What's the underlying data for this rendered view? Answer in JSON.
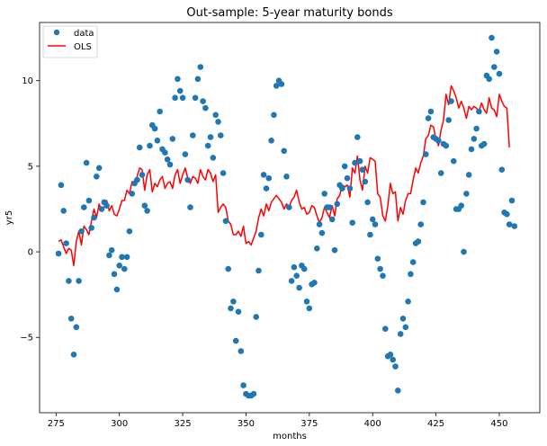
{
  "chart_data": {
    "type": "scatter",
    "title": "Out-sample: 5-year maturity bonds",
    "xlabel": "months",
    "ylabel": "yr5",
    "xlim": [
      268.5,
      466
    ],
    "ylim": [
      -9.4,
      13.4
    ],
    "x_ticks": [
      275,
      300,
      325,
      350,
      375,
      400,
      425,
      450
    ],
    "y_ticks": [
      -5,
      0,
      5,
      10
    ],
    "legend_position": "top-left",
    "grid": false,
    "legend": {
      "data_label": "data",
      "line_label": "OLS"
    },
    "colors": {
      "data": "#1f77b4",
      "line": "#ff0000"
    },
    "scatter": {
      "name": "data",
      "points": [
        [
          276,
          -0.1
        ],
        [
          277,
          3.9
        ],
        [
          278,
          2.4
        ],
        [
          279,
          0.5
        ],
        [
          280,
          -1.7
        ],
        [
          281,
          -3.9
        ],
        [
          282,
          -6.0
        ],
        [
          283,
          -4.4
        ],
        [
          284,
          -1.7
        ],
        [
          285,
          1.2
        ],
        [
          286,
          2.6
        ],
        [
          287,
          5.2
        ],
        [
          288,
          3.0
        ],
        [
          289,
          1.4
        ],
        [
          290,
          2.0
        ],
        [
          291,
          4.4
        ],
        [
          292,
          4.9
        ],
        [
          293,
          2.5
        ],
        [
          294,
          2.9
        ],
        [
          295,
          2.7
        ],
        [
          296,
          -0.2
        ],
        [
          297,
          0.1
        ],
        [
          298,
          -1.3
        ],
        [
          299,
          -2.2
        ],
        [
          300,
          -0.8
        ],
        [
          301,
          -0.3
        ],
        [
          302,
          -1.0
        ],
        [
          303,
          -0.3
        ],
        [
          304,
          1.2
        ],
        [
          305,
          3.4
        ],
        [
          306,
          4.0
        ],
        [
          307,
          4.2
        ],
        [
          308,
          6.1
        ],
        [
          309,
          4.5
        ],
        [
          310,
          2.7
        ],
        [
          311,
          2.4
        ],
        [
          312,
          6.2
        ],
        [
          313,
          7.4
        ],
        [
          314,
          7.2
        ],
        [
          315,
          6.5
        ],
        [
          316,
          8.2
        ],
        [
          317,
          6.0
        ],
        [
          318,
          5.8
        ],
        [
          319,
          5.4
        ],
        [
          320,
          5.1
        ],
        [
          321,
          6.6
        ],
        [
          322,
          9.0
        ],
        [
          323,
          10.1
        ],
        [
          324,
          9.4
        ],
        [
          325,
          9.0
        ],
        [
          326,
          5.7
        ],
        [
          327,
          4.2
        ],
        [
          328,
          2.6
        ],
        [
          329,
          6.8
        ],
        [
          330,
          9.0
        ],
        [
          331,
          10.1
        ],
        [
          332,
          10.8
        ],
        [
          333,
          8.8
        ],
        [
          334,
          8.4
        ],
        [
          335,
          6.2
        ],
        [
          336,
          6.7
        ],
        [
          337,
          5.5
        ],
        [
          338,
          8.0
        ],
        [
          339,
          7.6
        ],
        [
          340,
          6.8
        ],
        [
          341,
          4.6
        ],
        [
          342,
          1.8
        ],
        [
          343,
          -1.0
        ],
        [
          344,
          -3.3
        ],
        [
          345,
          -2.9
        ],
        [
          346,
          -5.2
        ],
        [
          347,
          -3.5
        ],
        [
          348,
          -5.8
        ],
        [
          349,
          -7.8
        ],
        [
          350,
          -8.3
        ],
        [
          351,
          -8.4
        ],
        [
          352,
          -8.4
        ],
        [
          353,
          -8.3
        ],
        [
          354,
          -3.8
        ],
        [
          355,
          -1.1
        ],
        [
          356,
          1.0
        ],
        [
          357,
          4.5
        ],
        [
          358,
          3.7
        ],
        [
          359,
          4.3
        ],
        [
          360,
          6.5
        ],
        [
          361,
          8.0
        ],
        [
          362,
          9.7
        ],
        [
          363,
          10.0
        ],
        [
          364,
          9.8
        ],
        [
          365,
          5.9
        ],
        [
          366,
          4.4
        ],
        [
          367,
          2.6
        ],
        [
          368,
          -1.7
        ],
        [
          369,
          -0.9
        ],
        [
          370,
          -1.4
        ],
        [
          371,
          -2.1
        ],
        [
          372,
          -0.8
        ],
        [
          373,
          -1.0
        ],
        [
          374,
          -2.9
        ],
        [
          375,
          -3.3
        ],
        [
          376,
          -1.9
        ],
        [
          377,
          -1.8
        ],
        [
          378,
          0.2
        ],
        [
          379,
          1.6
        ],
        [
          380,
          1.1
        ],
        [
          381,
          3.4
        ],
        [
          382,
          2.6
        ],
        [
          383,
          2.6
        ],
        [
          384,
          1.9
        ],
        [
          385,
          0.1
        ],
        [
          386,
          2.8
        ],
        [
          387,
          3.9
        ],
        [
          388,
          3.7
        ],
        [
          389,
          5.0
        ],
        [
          390,
          4.3
        ],
        [
          391,
          3.7
        ],
        [
          392,
          1.7
        ],
        [
          393,
          5.2
        ],
        [
          394,
          6.7
        ],
        [
          395,
          5.3
        ],
        [
          396,
          4.8
        ],
        [
          397,
          4.1
        ],
        [
          398,
          2.9
        ],
        [
          399,
          1.0
        ],
        [
          400,
          1.9
        ],
        [
          401,
          1.6
        ],
        [
          402,
          -0.4
        ],
        [
          403,
          -1.0
        ],
        [
          404,
          -1.4
        ],
        [
          405,
          -4.5
        ],
        [
          406,
          -6.1
        ],
        [
          407,
          -6.0
        ],
        [
          408,
          -6.3
        ],
        [
          409,
          -6.7
        ],
        [
          410,
          -8.1
        ],
        [
          411,
          -4.8
        ],
        [
          412,
          -3.9
        ],
        [
          413,
          -4.4
        ],
        [
          414,
          -2.9
        ],
        [
          415,
          -1.3
        ],
        [
          416,
          -0.6
        ],
        [
          417,
          0.5
        ],
        [
          418,
          0.6
        ],
        [
          419,
          1.6
        ],
        [
          420,
          2.9
        ],
        [
          421,
          5.7
        ],
        [
          422,
          7.8
        ],
        [
          423,
          8.2
        ],
        [
          424,
          6.7
        ],
        [
          425,
          6.6
        ],
        [
          426,
          6.5
        ],
        [
          427,
          4.6
        ],
        [
          428,
          6.3
        ],
        [
          429,
          6.2
        ],
        [
          430,
          7.7
        ],
        [
          431,
          8.8
        ],
        [
          432,
          5.3
        ],
        [
          433,
          2.5
        ],
        [
          434,
          2.5
        ],
        [
          435,
          2.7
        ],
        [
          436,
          0.0
        ],
        [
          437,
          3.4
        ],
        [
          438,
          4.5
        ],
        [
          439,
          6.0
        ],
        [
          440,
          6.6
        ],
        [
          441,
          7.2
        ],
        [
          442,
          8.2
        ],
        [
          443,
          6.2
        ],
        [
          444,
          6.3
        ],
        [
          445,
          10.3
        ],
        [
          446,
          10.1
        ],
        [
          447,
          12.5
        ],
        [
          448,
          10.8
        ],
        [
          449,
          11.7
        ],
        [
          450,
          10.4
        ],
        [
          451,
          4.8
        ],
        [
          452,
          2.3
        ],
        [
          453,
          2.2
        ],
        [
          454,
          1.6
        ],
        [
          455,
          3.0
        ],
        [
          456,
          1.5
        ]
      ]
    },
    "line": {
      "name": "OLS",
      "points": [
        [
          276,
          0.6
        ],
        [
          277,
          0.7
        ],
        [
          278,
          0.3
        ],
        [
          279,
          -0.1
        ],
        [
          280,
          0.2
        ],
        [
          281,
          0.1
        ],
        [
          282,
          -0.8
        ],
        [
          283,
          0.6
        ],
        [
          284,
          1.2
        ],
        [
          285,
          0.4
        ],
        [
          286,
          1.5
        ],
        [
          287,
          1.3
        ],
        [
          288,
          1.0
        ],
        [
          289,
          1.8
        ],
        [
          290,
          2.5
        ],
        [
          291,
          2.0
        ],
        [
          292,
          2.8
        ],
        [
          293,
          2.4
        ],
        [
          294,
          2.6
        ],
        [
          295,
          3.0
        ],
        [
          296,
          2.4
        ],
        [
          297,
          2.7
        ],
        [
          298,
          2.2
        ],
        [
          299,
          2.1
        ],
        [
          300,
          2.5
        ],
        [
          301,
          3.0
        ],
        [
          302,
          3.0
        ],
        [
          303,
          3.6
        ],
        [
          304,
          3.4
        ],
        [
          305,
          4.1
        ],
        [
          306,
          3.9
        ],
        [
          307,
          4.4
        ],
        [
          308,
          4.9
        ],
        [
          309,
          4.8
        ],
        [
          310,
          3.6
        ],
        [
          311,
          4.5
        ],
        [
          312,
          4.8
        ],
        [
          313,
          3.5
        ],
        [
          314,
          4.0
        ],
        [
          315,
          3.8
        ],
        [
          316,
          4.2
        ],
        [
          317,
          4.4
        ],
        [
          318,
          3.7
        ],
        [
          319,
          4.0
        ],
        [
          320,
          4.1
        ],
        [
          321,
          3.7
        ],
        [
          322,
          4.5
        ],
        [
          323,
          4.8
        ],
        [
          324,
          4.0
        ],
        [
          325,
          4.5
        ],
        [
          326,
          4.9
        ],
        [
          327,
          4.3
        ],
        [
          328,
          4.0
        ],
        [
          329,
          4.4
        ],
        [
          330,
          4.3
        ],
        [
          331,
          4.0
        ],
        [
          332,
          4.8
        ],
        [
          333,
          4.4
        ],
        [
          334,
          4.2
        ],
        [
          335,
          4.8
        ],
        [
          336,
          4.6
        ],
        [
          337,
          4.1
        ],
        [
          338,
          4.5
        ],
        [
          339,
          2.3
        ],
        [
          340,
          2.6
        ],
        [
          341,
          2.8
        ],
        [
          342,
          2.6
        ],
        [
          343,
          1.8
        ],
        [
          344,
          1.6
        ],
        [
          345,
          1.0
        ],
        [
          346,
          1.0
        ],
        [
          347,
          1.2
        ],
        [
          348,
          0.9
        ],
        [
          349,
          1.5
        ],
        [
          350,
          0.5
        ],
        [
          351,
          0.6
        ],
        [
          352,
          0.4
        ],
        [
          353,
          0.8
        ],
        [
          354,
          1.2
        ],
        [
          355,
          2.0
        ],
        [
          356,
          2.5
        ],
        [
          357,
          2.1
        ],
        [
          358,
          2.8
        ],
        [
          359,
          2.4
        ],
        [
          360,
          2.9
        ],
        [
          361,
          3.1
        ],
        [
          362,
          3.3
        ],
        [
          363,
          3.1
        ],
        [
          364,
          2.9
        ],
        [
          365,
          2.5
        ],
        [
          366,
          2.8
        ],
        [
          367,
          2.6
        ],
        [
          368,
          3.0
        ],
        [
          369,
          3.2
        ],
        [
          370,
          3.6
        ],
        [
          371,
          2.9
        ],
        [
          372,
          2.5
        ],
        [
          373,
          2.6
        ],
        [
          374,
          2.2
        ],
        [
          375,
          2.3
        ],
        [
          376,
          2.7
        ],
        [
          377,
          2.6
        ],
        [
          378,
          2.1
        ],
        [
          379,
          1.7
        ],
        [
          380,
          2.0
        ],
        [
          381,
          2.6
        ],
        [
          382,
          2.3
        ],
        [
          383,
          2.0
        ],
        [
          384,
          2.7
        ],
        [
          385,
          2.1
        ],
        [
          386,
          3.1
        ],
        [
          387,
          3.3
        ],
        [
          388,
          3.9
        ],
        [
          389,
          3.8
        ],
        [
          390,
          3.9
        ],
        [
          391,
          3.2
        ],
        [
          392,
          4.9
        ],
        [
          393,
          4.6
        ],
        [
          394,
          5.6
        ],
        [
          395,
          4.2
        ],
        [
          396,
          3.6
        ],
        [
          397,
          5.0
        ],
        [
          398,
          4.6
        ],
        [
          399,
          5.5
        ],
        [
          400,
          5.4
        ],
        [
          401,
          5.3
        ],
        [
          402,
          3.4
        ],
        [
          403,
          3.2
        ],
        [
          404,
          2.1
        ],
        [
          405,
          1.8
        ],
        [
          406,
          2.7
        ],
        [
          407,
          4.0
        ],
        [
          408,
          3.4
        ],
        [
          409,
          3.5
        ],
        [
          410,
          1.8
        ],
        [
          411,
          2.6
        ],
        [
          412,
          2.2
        ],
        [
          413,
          3.0
        ],
        [
          414,
          3.4
        ],
        [
          415,
          3.4
        ],
        [
          416,
          4.2
        ],
        [
          417,
          4.9
        ],
        [
          418,
          4.6
        ],
        [
          419,
          5.2
        ],
        [
          420,
          5.6
        ],
        [
          421,
          6.6
        ],
        [
          422,
          6.8
        ],
        [
          423,
          7.4
        ],
        [
          424,
          7.3
        ],
        [
          425,
          6.6
        ],
        [
          426,
          6.2
        ],
        [
          427,
          7.1
        ],
        [
          428,
          7.7
        ],
        [
          429,
          9.2
        ],
        [
          430,
          8.6
        ],
        [
          431,
          9.7
        ],
        [
          432,
          9.4
        ],
        [
          433,
          9.0
        ],
        [
          434,
          8.4
        ],
        [
          435,
          8.8
        ],
        [
          436,
          8.4
        ],
        [
          437,
          7.8
        ],
        [
          438,
          8.5
        ],
        [
          439,
          8.3
        ],
        [
          440,
          8.5
        ],
        [
          441,
          8.4
        ],
        [
          442,
          8.2
        ],
        [
          443,
          8.7
        ],
        [
          444,
          8.3
        ],
        [
          445,
          8.1
        ],
        [
          446,
          9.0
        ],
        [
          447,
          8.4
        ],
        [
          448,
          8.3
        ],
        [
          449,
          7.9
        ],
        [
          450,
          9.2
        ],
        [
          451,
          8.8
        ],
        [
          452,
          8.5
        ],
        [
          453,
          8.4
        ],
        [
          454,
          6.1
        ]
      ]
    }
  }
}
